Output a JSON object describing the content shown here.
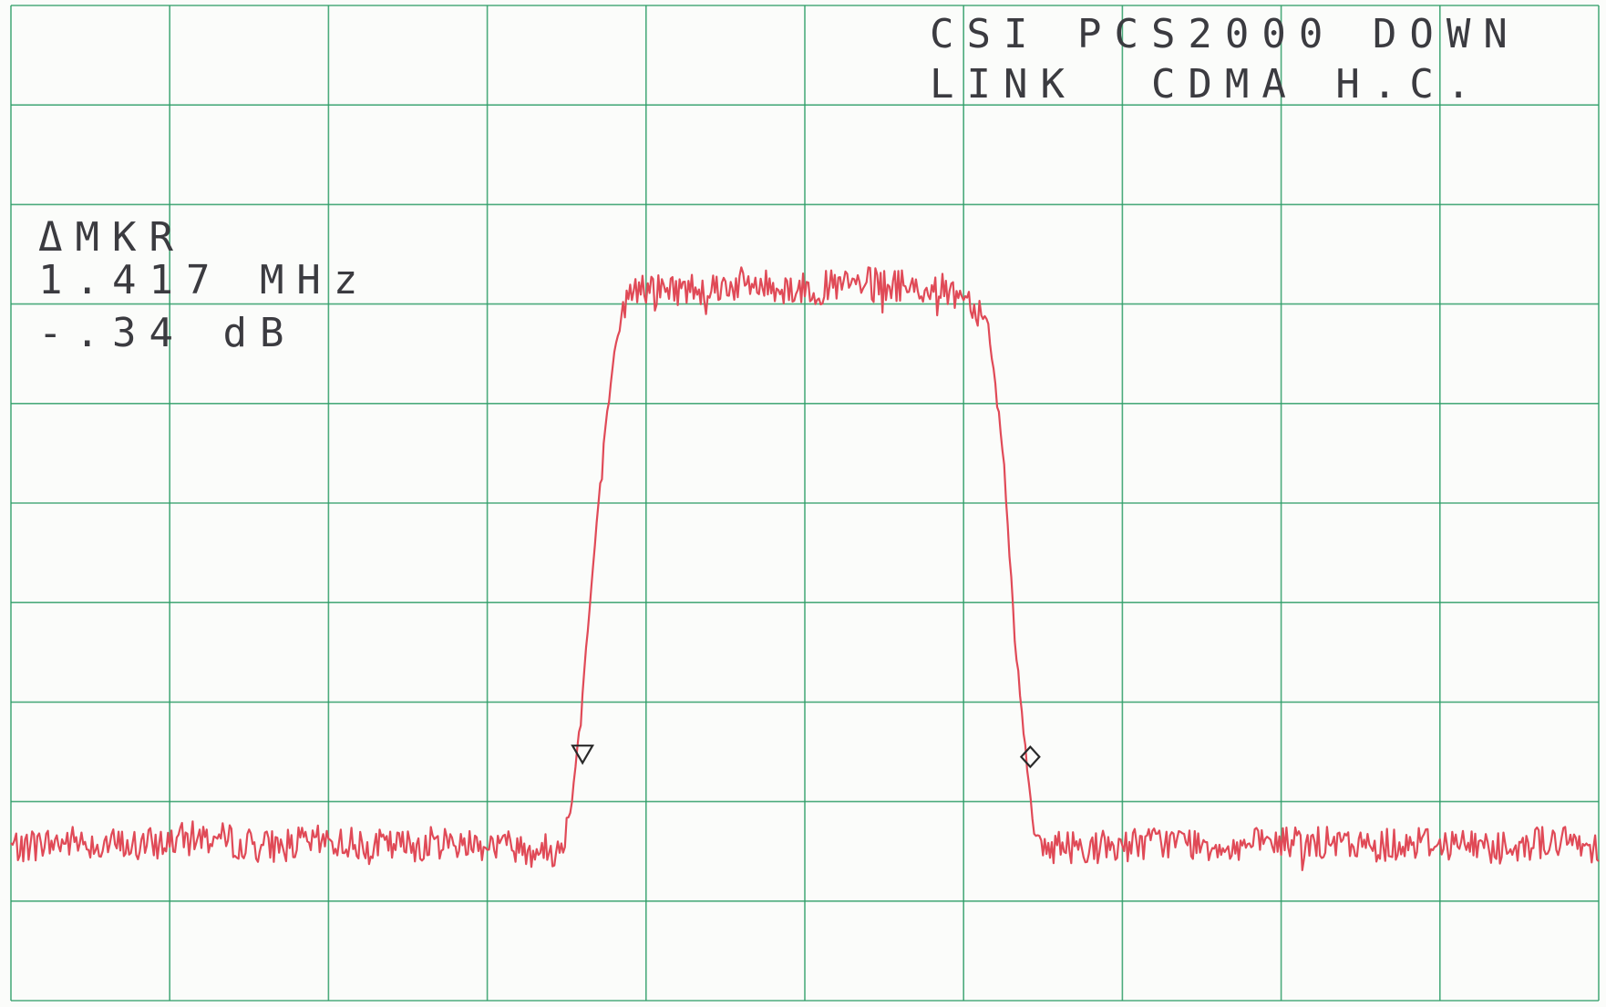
{
  "colors": {
    "grid": "#2e9e68",
    "trace": "#e04a57",
    "marker": "#2a2a2a",
    "text": "#3b3b40",
    "paper": "#fbfcfa"
  },
  "title": {
    "line1": "CSI PCS2000 DOWN",
    "line2": "LINK  CDMA H.C."
  },
  "marker_readout": {
    "label": "ΔMKR",
    "freq": "1.417 MHz",
    "level": "-.34 dB"
  },
  "chart_data": {
    "type": "line",
    "title": "",
    "xlabel": "",
    "ylabel": "",
    "grid": true,
    "grid_divisions": {
      "x": 10,
      "y": 10
    },
    "xlim": [
      0,
      10
    ],
    "ylim": [
      0,
      10
    ],
    "series": [
      {
        "points": [
          [
            0.0,
            1.55
          ],
          [
            0.4,
            1.6
          ],
          [
            0.8,
            1.55
          ],
          [
            1.2,
            1.65
          ],
          [
            1.6,
            1.55
          ],
          [
            2.0,
            1.6
          ],
          [
            2.4,
            1.55
          ],
          [
            2.8,
            1.6
          ],
          [
            3.2,
            1.55
          ],
          [
            3.45,
            1.5
          ],
          [
            3.52,
            1.85
          ],
          [
            3.58,
            2.75
          ],
          [
            3.64,
            3.85
          ],
          [
            3.7,
            5.0
          ],
          [
            3.76,
            6.0
          ],
          [
            3.82,
            6.7
          ],
          [
            3.9,
            7.15
          ],
          [
            4.2,
            7.15
          ],
          [
            4.6,
            7.2
          ],
          [
            5.0,
            7.15
          ],
          [
            5.4,
            7.2
          ],
          [
            5.8,
            7.15
          ],
          [
            6.0,
            7.1
          ],
          [
            6.15,
            6.85
          ],
          [
            6.25,
            5.5
          ],
          [
            6.32,
            3.7
          ],
          [
            6.4,
            2.35
          ],
          [
            6.45,
            1.65
          ],
          [
            6.5,
            1.55
          ],
          [
            6.9,
            1.55
          ],
          [
            7.3,
            1.6
          ],
          [
            7.7,
            1.55
          ],
          [
            8.1,
            1.6
          ],
          [
            8.5,
            1.55
          ],
          [
            8.9,
            1.6
          ],
          [
            9.3,
            1.55
          ],
          [
            9.7,
            1.6
          ],
          [
            10.0,
            1.55
          ]
        ]
      }
    ],
    "markers": [
      {
        "symbol": "triangle-down",
        "x": 3.6,
        "y": 2.48
      },
      {
        "symbol": "diamond",
        "x": 6.42,
        "y": 2.45
      }
    ]
  }
}
